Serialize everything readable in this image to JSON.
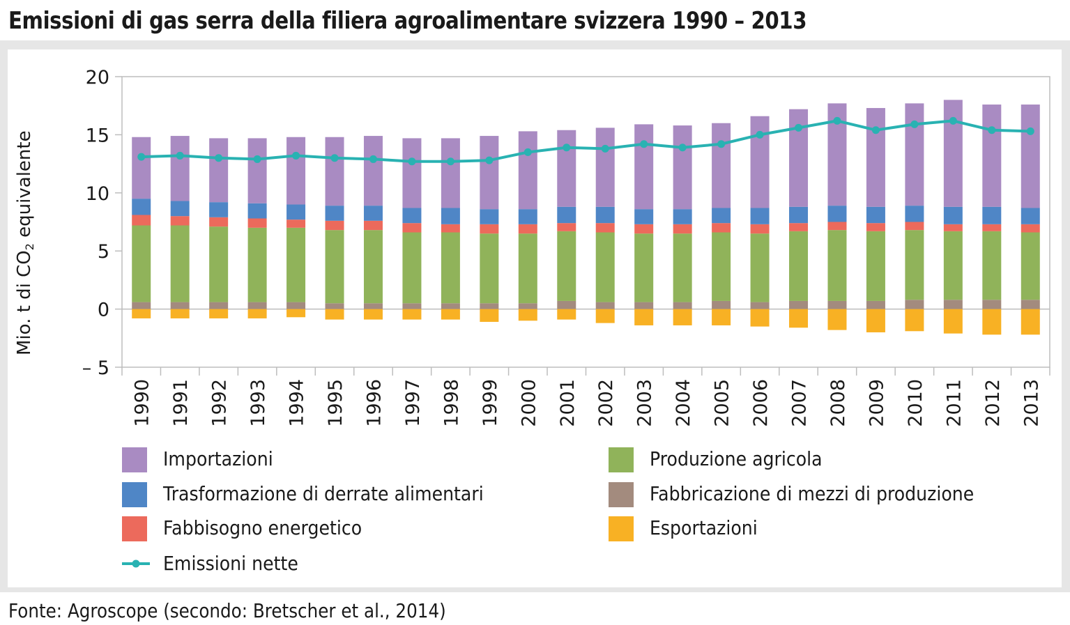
{
  "title": "Emissioni di gas serra della filiera agroalimentare svizzera 1990 – 2013",
  "source": "Fonte: Agroscope (secondo: Bretscher et al., 2014)",
  "ylabel_pre": "Mio. t di CO",
  "ylabel_sub": "2",
  "ylabel_post": " equivalente",
  "legend": {
    "importazioni": "Importazioni",
    "trasformazione": "Trasformazione di derrate alimentari",
    "fabbisogno": "Fabbisogno energetico",
    "nette": "Emissioni nette",
    "produzione": "Produzione agricola",
    "fabbricazione": "Fabbricazione di mezzi di produzione",
    "esportazioni": "Esportazioni"
  },
  "colors": {
    "importazioni": "#a98bc2",
    "trasformazione": "#4f86c6",
    "fabbisogno": "#ec6a5c",
    "produzione": "#90b35a",
    "fabbricazione": "#a38b7e",
    "esportazioni": "#f8b124",
    "nette": "#29b2b2"
  },
  "chart_data": {
    "type": "bar",
    "stacked": true,
    "title": "Emissioni di gas serra della filiera agroalimentare svizzera 1990 – 2013",
    "ylabel": "Mio. t di CO2 equivalente",
    "xlabel": "",
    "ylim": [
      -5,
      20
    ],
    "yticks": [
      -5,
      0,
      5,
      10,
      15,
      20
    ],
    "ytick_labels": [
      "– 5",
      "0",
      "5",
      "10",
      "15",
      "20"
    ],
    "categories": [
      "1990",
      "1991",
      "1992",
      "1993",
      "1994",
      "1995",
      "1996",
      "1997",
      "1998",
      "1999",
      "2000",
      "2001",
      "2002",
      "2003",
      "2004",
      "2005",
      "2006",
      "2007",
      "2008",
      "2009",
      "2010",
      "2011",
      "2012",
      "2013"
    ],
    "series": [
      {
        "name": "Fabbricazione di mezzi di produzione",
        "key": "fabbricazione",
        "values": [
          0.6,
          0.6,
          0.6,
          0.6,
          0.6,
          0.5,
          0.5,
          0.5,
          0.5,
          0.5,
          0.5,
          0.7,
          0.6,
          0.6,
          0.6,
          0.7,
          0.6,
          0.7,
          0.7,
          0.7,
          0.8,
          0.8,
          0.8,
          0.8
        ]
      },
      {
        "name": "Produzione agricola",
        "key": "produzione",
        "values": [
          6.6,
          6.6,
          6.5,
          6.4,
          6.4,
          6.3,
          6.3,
          6.1,
          6.1,
          6.0,
          6.0,
          6.0,
          6.0,
          5.9,
          5.9,
          5.9,
          5.9,
          6.0,
          6.1,
          6.0,
          6.0,
          5.9,
          5.9,
          5.8
        ]
      },
      {
        "name": "Fabbisogno energetico",
        "key": "fabbisogno",
        "values": [
          0.9,
          0.8,
          0.8,
          0.8,
          0.7,
          0.8,
          0.8,
          0.8,
          0.7,
          0.8,
          0.8,
          0.7,
          0.8,
          0.8,
          0.8,
          0.8,
          0.8,
          0.7,
          0.7,
          0.7,
          0.7,
          0.6,
          0.6,
          0.7
        ]
      },
      {
        "name": "Trasformazione di derrate alimentari",
        "key": "trasformazione",
        "values": [
          1.4,
          1.3,
          1.3,
          1.3,
          1.3,
          1.3,
          1.3,
          1.3,
          1.4,
          1.3,
          1.3,
          1.4,
          1.4,
          1.3,
          1.3,
          1.3,
          1.4,
          1.4,
          1.4,
          1.4,
          1.4,
          1.5,
          1.5,
          1.4
        ]
      },
      {
        "name": "Importazioni",
        "key": "importazioni",
        "values": [
          5.3,
          5.6,
          5.5,
          5.6,
          5.8,
          5.9,
          6.0,
          6.0,
          6.0,
          6.3,
          6.7,
          6.6,
          6.8,
          7.3,
          7.2,
          7.3,
          7.9,
          8.4,
          8.8,
          8.5,
          8.8,
          9.2,
          8.8,
          8.9
        ]
      },
      {
        "name": "Esportazioni",
        "key": "esportazioni",
        "values": [
          -0.8,
          -0.8,
          -0.8,
          -0.8,
          -0.7,
          -0.9,
          -0.9,
          -0.9,
          -0.9,
          -1.1,
          -1.0,
          -0.9,
          -1.2,
          -1.4,
          -1.4,
          -1.4,
          -1.5,
          -1.6,
          -1.8,
          -2.0,
          -1.9,
          -2.1,
          -2.2,
          -2.2
        ]
      }
    ],
    "line": {
      "name": "Emissioni nette",
      "key": "nette",
      "values": [
        13.1,
        13.2,
        13.0,
        12.9,
        13.2,
        13.0,
        12.9,
        12.7,
        12.7,
        12.8,
        13.5,
        13.9,
        13.8,
        14.2,
        13.9,
        14.2,
        15.0,
        15.6,
        16.2,
        15.4,
        15.9,
        16.2,
        15.4,
        15.3
      ]
    }
  }
}
